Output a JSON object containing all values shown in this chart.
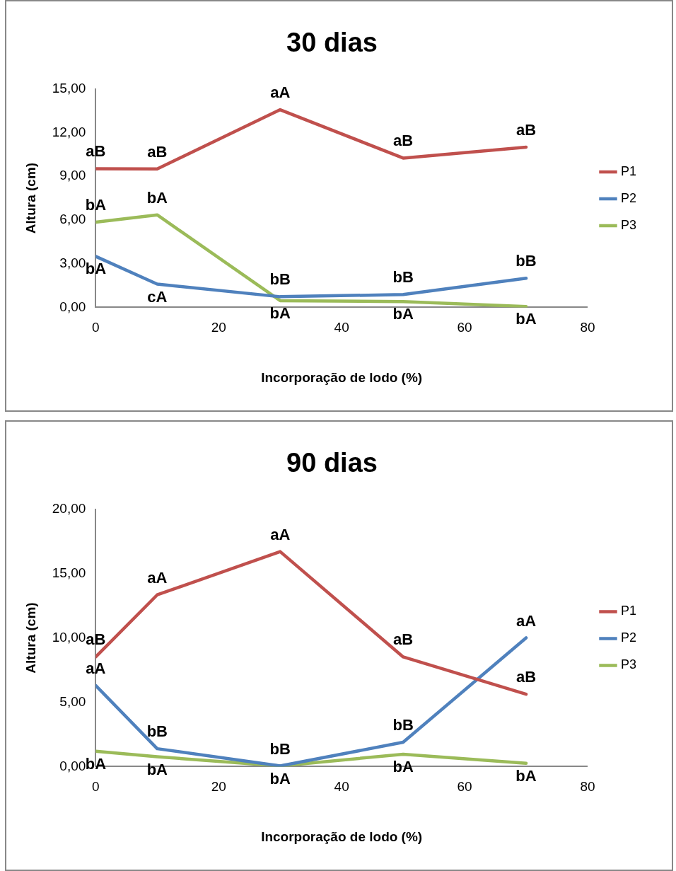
{
  "chart_data": [
    {
      "type": "line",
      "title": "30 dias",
      "xlabel": "Incorporação de lodo (%)",
      "ylabel": "Altura (cm)",
      "x": [
        0,
        10,
        30,
        50,
        70
      ],
      "series": [
        {
          "name": "P1",
          "color": "#c0504d",
          "values": [
            9.52,
            9.5,
            13.57,
            10.25,
            11.0
          ]
        },
        {
          "name": "P2",
          "color": "#4f81bd",
          "values": [
            3.5,
            1.6,
            0.73,
            0.88,
            2.0
          ]
        },
        {
          "name": "P3",
          "color": "#9bbb59",
          "values": [
            5.85,
            6.35,
            0.46,
            0.4,
            0.06
          ]
        }
      ],
      "xlim": [
        0,
        80
      ],
      "xticks": [
        0,
        20,
        40,
        60,
        80
      ],
      "ylim": [
        0,
        15
      ],
      "yticks": [
        {
          "value": 0,
          "label": "0,00"
        },
        {
          "value": 3,
          "label": "3,00"
        },
        {
          "value": 6,
          "label": "6,00"
        },
        {
          "value": 9,
          "label": "9,00"
        },
        {
          "value": 12,
          "label": "12,00"
        },
        {
          "value": 15,
          "label": "15,00"
        }
      ],
      "grid": false,
      "legend": "right",
      "marker": "none",
      "line_style": "solid",
      "annotations": [
        {
          "text": "aB",
          "x": 0,
          "y": 9.52
        },
        {
          "text": "aB",
          "x": 10,
          "y": 9.5
        },
        {
          "text": "aA",
          "x": 30,
          "y": 13.57
        },
        {
          "text": "aB",
          "x": 50,
          "y": 10.25
        },
        {
          "text": "aB",
          "x": 70,
          "y": 11.0
        },
        {
          "text": "bA",
          "x": 0,
          "y": 3.5
        },
        {
          "text": "cA",
          "x": 10,
          "y": 1.6
        },
        {
          "text": "bB",
          "x": 30,
          "y": 0.73
        },
        {
          "text": "bB",
          "x": 50,
          "y": 0.88
        },
        {
          "text": "bB",
          "x": 70,
          "y": 2.0
        },
        {
          "text": "bA",
          "x": 0,
          "y": 5.85
        },
        {
          "text": "bA",
          "x": 10,
          "y": 6.35
        },
        {
          "text": "bA",
          "x": 30,
          "y": 0.46
        },
        {
          "text": "bA",
          "x": 50,
          "y": 0.4
        },
        {
          "text": "bA",
          "x": 70,
          "y": 0.06
        }
      ]
    },
    {
      "type": "line",
      "title": "90 dias",
      "xlabel": "Incorporação de lodo (%)",
      "ylabel": "Altura (cm)",
      "x": [
        0,
        10,
        30,
        50,
        70
      ],
      "series": [
        {
          "name": "P1",
          "color": "#c0504d",
          "values": [
            8.52,
            13.34,
            16.7,
            8.52,
            5.62
          ]
        },
        {
          "name": "P2",
          "color": "#4f81bd",
          "values": [
            6.3,
            1.39,
            0.05,
            1.89,
            10.0
          ]
        },
        {
          "name": "P3",
          "color": "#9bbb59",
          "values": [
            1.19,
            0.76,
            0.05,
            0.96,
            0.25
          ]
        }
      ],
      "xlim": [
        0,
        80
      ],
      "xticks": [
        0,
        20,
        40,
        60,
        80
      ],
      "ylim": [
        0,
        20
      ],
      "yticks": [
        {
          "value": 0,
          "label": "0,00"
        },
        {
          "value": 5,
          "label": "5,00"
        },
        {
          "value": 10,
          "label": "10,00"
        },
        {
          "value": 15,
          "label": "15,00"
        },
        {
          "value": 20,
          "label": "20,00"
        }
      ],
      "grid": false,
      "legend": "right",
      "marker": "none",
      "line_style": "solid",
      "annotations": [
        {
          "text": "aB",
          "x": 0,
          "y": 8.52
        },
        {
          "text": "aA",
          "x": 10,
          "y": 13.34
        },
        {
          "text": "aA",
          "x": 30,
          "y": 16.7
        },
        {
          "text": "aB",
          "x": 50,
          "y": 8.52
        },
        {
          "text": "aB",
          "x": 70,
          "y": 5.62
        },
        {
          "text": "aA",
          "x": 0,
          "y": 6.3
        },
        {
          "text": "bB",
          "x": 10,
          "y": 1.39
        },
        {
          "text": "bB",
          "x": 30,
          "y": 0.05
        },
        {
          "text": "bB",
          "x": 50,
          "y": 1.89
        },
        {
          "text": "aA",
          "x": 70,
          "y": 10.0
        },
        {
          "text": "bA",
          "x": 0,
          "y": 1.19
        },
        {
          "text": "bA",
          "x": 10,
          "y": 0.76
        },
        {
          "text": "bA",
          "x": 30,
          "y": 0.05
        },
        {
          "text": "bA",
          "x": 50,
          "y": 0.96
        },
        {
          "text": "bA",
          "x": 70,
          "y": 0.25
        }
      ]
    }
  ]
}
